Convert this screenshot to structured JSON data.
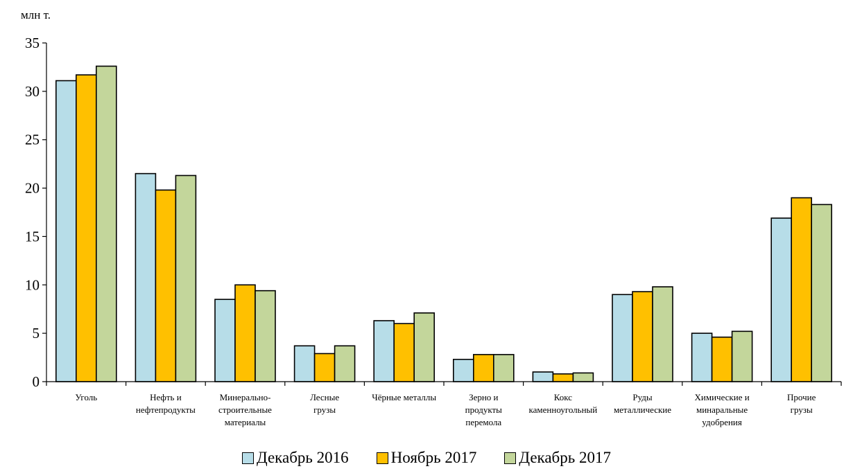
{
  "chart_data": {
    "type": "bar",
    "ylabel": "млн т.",
    "ylim": [
      0,
      35
    ],
    "yticks": [
      0,
      5,
      10,
      15,
      20,
      25,
      30,
      35
    ],
    "grid": false,
    "legend_position": "bottom",
    "categories": [
      [
        "Уголь"
      ],
      [
        "Нефть и",
        "нефтепродукты"
      ],
      [
        "Минерально-",
        "строительные",
        "материалы"
      ],
      [
        "Лесные",
        "грузы"
      ],
      [
        "Чёрные металлы"
      ],
      [
        "Зерно и",
        "продукты",
        "перемола"
      ],
      [
        "Кокс",
        "каменноугольный"
      ],
      [
        "Руды",
        "металлические"
      ],
      [
        "Химические и",
        "минаральные",
        "удобрения"
      ],
      [
        "Прочие",
        "грузы"
      ]
    ],
    "series": [
      {
        "name": "Декабрь 2016",
        "color": "#b7dde8",
        "values": [
          31.1,
          21.5,
          8.5,
          3.7,
          6.3,
          2.3,
          1.0,
          9.0,
          5.0,
          16.9
        ]
      },
      {
        "name": "Ноябрь 2017",
        "color": "#ffc000",
        "values": [
          31.7,
          19.8,
          10.0,
          2.9,
          6.0,
          2.8,
          0.8,
          9.3,
          4.6,
          19.0
        ]
      },
      {
        "name": "Декабрь 2017",
        "color": "#c3d69b",
        "values": [
          32.6,
          21.3,
          9.4,
          3.7,
          7.1,
          2.8,
          0.9,
          9.8,
          5.2,
          18.3
        ]
      }
    ]
  }
}
